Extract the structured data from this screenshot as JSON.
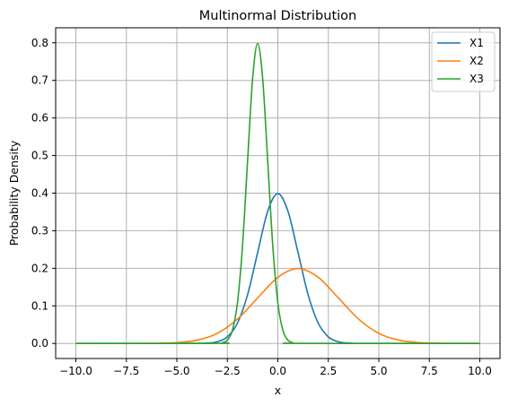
{
  "chart_data": {
    "type": "line",
    "title": "Multinormal Distribution",
    "xlabel": "x",
    "ylabel": "Probability Density",
    "xlim": [
      -11,
      11
    ],
    "ylim": [
      -0.04,
      0.84
    ],
    "xticks": [
      -10,
      -7.5,
      -5,
      -2.5,
      0,
      2.5,
      5,
      7.5,
      10
    ],
    "xtick_labels": [
      "−10.0",
      "−7.5",
      "−5.0",
      "−2.5",
      "0.0",
      "2.5",
      "5.0",
      "7.5",
      "10.0"
    ],
    "yticks": [
      0.0,
      0.1,
      0.2,
      0.3,
      0.4,
      0.5,
      0.6,
      0.7,
      0.8
    ],
    "ytick_labels": [
      "0.0",
      "0.1",
      "0.2",
      "0.3",
      "0.4",
      "0.5",
      "0.6",
      "0.7",
      "0.8"
    ],
    "grid": true,
    "legend_position": "top-right",
    "series": [
      {
        "name": "X1",
        "color": "#1f77b4",
        "x": [
          -10,
          -5,
          -4,
          -3.5,
          -3,
          -2.5,
          -2,
          -1.5,
          -1,
          -0.5,
          0,
          0.5,
          1,
          1.5,
          2,
          2.5,
          3,
          3.5,
          4,
          5,
          10
        ],
        "y": [
          0.0,
          0.0,
          0.0001,
          0.0009,
          0.0044,
          0.0175,
          0.054,
          0.1295,
          0.242,
          0.352,
          0.399,
          0.352,
          0.242,
          0.1295,
          0.054,
          0.0175,
          0.0044,
          0.0009,
          0.0001,
          0.0,
          0.0
        ]
      },
      {
        "name": "X2",
        "color": "#ff7f0e",
        "x": [
          -10,
          -7,
          -6,
          -5,
          -4,
          -3,
          -2,
          -1,
          0,
          1,
          2,
          3,
          4,
          5,
          6,
          7,
          8,
          9,
          10
        ],
        "y": [
          0.0,
          0.0,
          0.0004,
          0.0022,
          0.0088,
          0.027,
          0.0648,
          0.121,
          0.176,
          0.1995,
          0.176,
          0.121,
          0.0648,
          0.027,
          0.0088,
          0.0022,
          0.0004,
          0.0001,
          0.0
        ]
      },
      {
        "name": "X3",
        "color": "#2ca02c",
        "x": [
          -10,
          -3,
          -2.75,
          -2.5,
          -2.25,
          -2,
          -1.75,
          -1.5,
          -1.25,
          -1,
          -0.75,
          -0.5,
          -0.25,
          0,
          0.25,
          0.5,
          0.75,
          1,
          10
        ],
        "y": [
          0.0,
          0.0003,
          0.0017,
          0.0088,
          0.035,
          0.108,
          0.259,
          0.484,
          0.704,
          0.798,
          0.704,
          0.484,
          0.259,
          0.108,
          0.035,
          0.0088,
          0.0017,
          0.0003,
          0.0
        ]
      }
    ]
  }
}
